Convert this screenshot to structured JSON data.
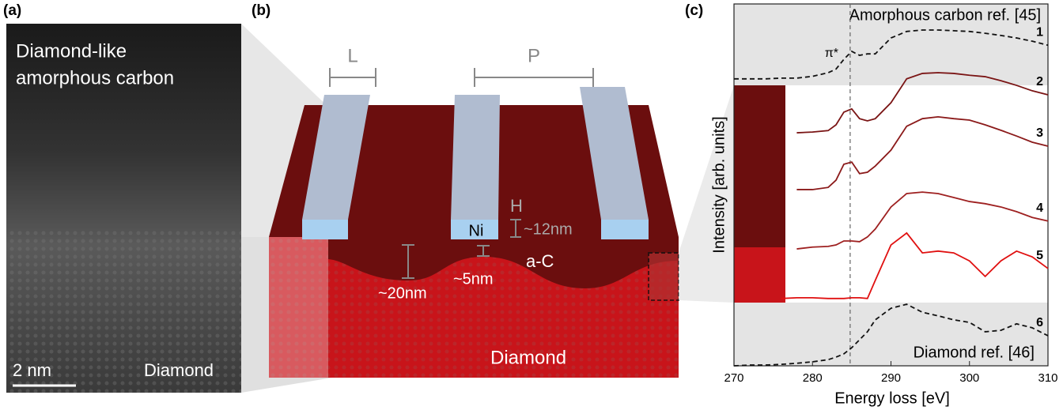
{
  "panel_a": {
    "label": "(a)",
    "title_line1": "Diamond-like",
    "title_line2": "amorphous carbon",
    "scale_bar": "2 nm",
    "substrate": "Diamond"
  },
  "panel_b": {
    "label": "(b)",
    "width_label": "L",
    "pitch_label": "P",
    "height_label": "H",
    "height_value": "~12nm",
    "electrode": "Ni",
    "depth_deep": "~20nm",
    "depth_shallow": "~5nm",
    "layer": "a-C",
    "substrate": "Diamond"
  },
  "chart_data": {
    "type": "line",
    "panel_label": "(c)",
    "x_label": "Energy loss [eV]",
    "y_label": "Intensity [arb. units]",
    "annotations": {
      "top_ref": "Amorphous carbon ref. [45]",
      "bottom_ref": "Diamond ref. [46]",
      "peak": "π*"
    },
    "vline": 284.8,
    "xlim": [
      270,
      310
    ],
    "xticks": [
      270,
      280,
      290,
      300,
      310
    ],
    "ylim": [
      0,
      100
    ],
    "x": [
      270,
      272,
      274,
      276,
      278,
      280,
      282,
      283,
      284,
      285,
      286,
      287,
      288,
      290,
      292,
      294,
      296,
      298,
      300,
      302,
      304,
      306,
      308,
      310
    ],
    "series": [
      {
        "name": "1",
        "color": "#111111",
        "dashed": true,
        "values": [
          79.3,
          79.3,
          79.3,
          79.5,
          79.5,
          80,
          81,
          82,
          84.7,
          86.9,
          85.8,
          86.2,
          86.2,
          90.6,
          92.4,
          92.8,
          92.8,
          92.6,
          92.4,
          91.9,
          91.3,
          90.6,
          89.7,
          88.6
        ]
      },
      {
        "name": "2",
        "color": "#7a1414",
        "dashed": false,
        "values": [
          null,
          null,
          null,
          null,
          64.4,
          64.6,
          65,
          66.6,
          70.1,
          71,
          68.3,
          67.7,
          68.3,
          72.7,
          79.3,
          80.8,
          81,
          80.8,
          80.3,
          79.9,
          78.8,
          77.5,
          76,
          74.9
        ]
      },
      {
        "name": "3",
        "color": "#8b1a1a",
        "dashed": false,
        "values": [
          null,
          null,
          null,
          null,
          48.7,
          48.7,
          49.3,
          51.3,
          55.7,
          56.3,
          53.1,
          53.5,
          55.2,
          59.6,
          66.2,
          68.3,
          68.8,
          68.3,
          67.9,
          66.6,
          65.1,
          63.5,
          61.8,
          60.7
        ]
      },
      {
        "name": "4",
        "color": "#9e2020",
        "dashed": false,
        "values": [
          null,
          null,
          null,
          null,
          32.3,
          32.8,
          33,
          33.4,
          34.5,
          34.5,
          34.3,
          35.6,
          37.8,
          43.9,
          47.6,
          48,
          47.6,
          46.5,
          45.4,
          44.8,
          43.9,
          42.6,
          41,
          40
        ]
      },
      {
        "name": "5",
        "color": "#e01010",
        "dashed": false,
        "values": [
          null,
          null,
          null,
          18.6,
          18.8,
          18.8,
          18.6,
          18.6,
          18.6,
          18.8,
          18.8,
          18.6,
          23.6,
          33.4,
          36.7,
          31.2,
          31.7,
          31.2,
          29,
          24.7,
          29,
          31.7,
          30.1,
          26.9
        ]
      },
      {
        "name": "6",
        "color": "#111111",
        "dashed": true,
        "values": [
          0,
          0.2,
          0.2,
          0.4,
          0.7,
          1.1,
          1.7,
          2.4,
          3.3,
          5,
          7.2,
          9.4,
          12.7,
          15.9,
          17,
          14.8,
          13.8,
          12.7,
          12,
          9.4,
          9.8,
          11.6,
          10.5,
          8.3
        ]
      }
    ]
  }
}
